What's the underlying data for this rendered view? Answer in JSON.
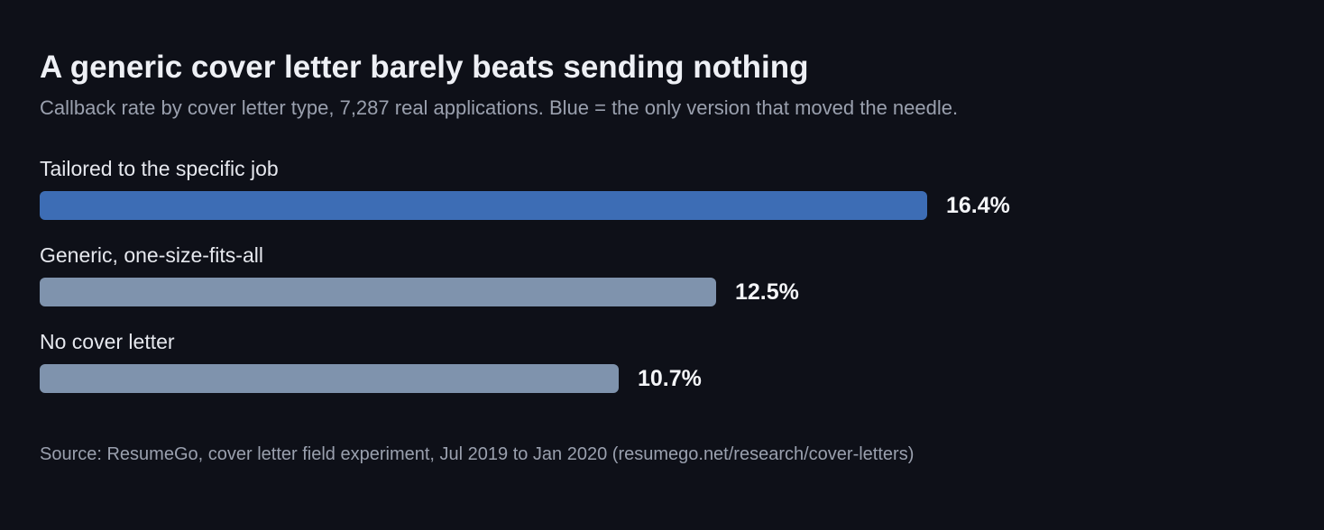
{
  "title": "A generic cover letter barely beats sending nothing",
  "subtitle": "Callback rate by cover letter type, 7,287 real applications. Blue = the only version that moved the needle.",
  "source": "Source: ResumeGo, cover letter field experiment, Jul 2019 to Jan 2020 (resumego.net/research/cover-letters)",
  "chart_data": {
    "type": "bar",
    "orientation": "horizontal",
    "categories": [
      "Tailored to the specific job",
      "Generic, one-size-fits-all",
      "No cover letter"
    ],
    "values": [
      16.4,
      12.5,
      10.7
    ],
    "value_labels": [
      "16.4%",
      "12.5%",
      "10.7%"
    ],
    "highlight_index": 0,
    "colors": {
      "highlight": "#3d6db5",
      "default": "#7f93ad"
    },
    "grid": false,
    "legend": "none"
  }
}
